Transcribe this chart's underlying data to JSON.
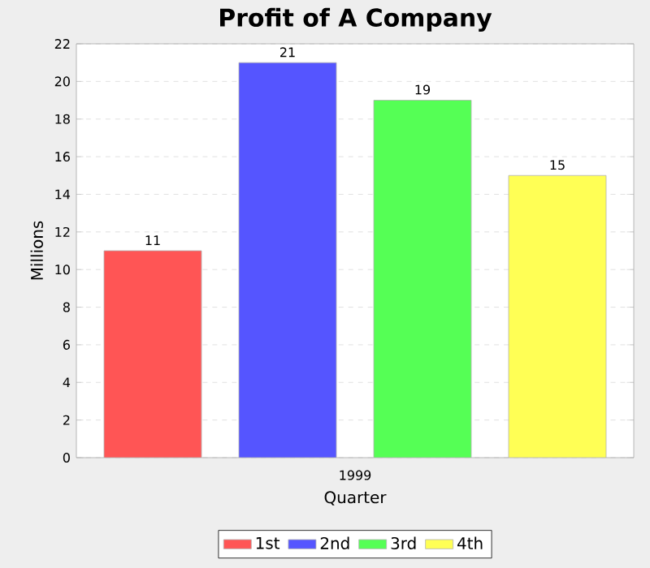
{
  "chart_data": {
    "type": "bar",
    "title": "Profit of A Company",
    "xlabel": "Quarter",
    "ylabel": "Millions",
    "categories": [
      "1999"
    ],
    "series": [
      {
        "name": "1st",
        "color": "#ff5555",
        "values": [
          11
        ]
      },
      {
        "name": "2nd",
        "color": "#5555ff",
        "values": [
          21
        ]
      },
      {
        "name": "3rd",
        "color": "#55ff55",
        "values": [
          19
        ]
      },
      {
        "name": "4th",
        "color": "#ffff55",
        "values": [
          15
        ]
      }
    ],
    "ylim": [
      0,
      22
    ],
    "yticks": [
      0,
      2,
      4,
      6,
      8,
      10,
      12,
      14,
      16,
      18,
      20,
      22
    ],
    "grid": "y",
    "legend": "bottom",
    "data_labels": true
  }
}
